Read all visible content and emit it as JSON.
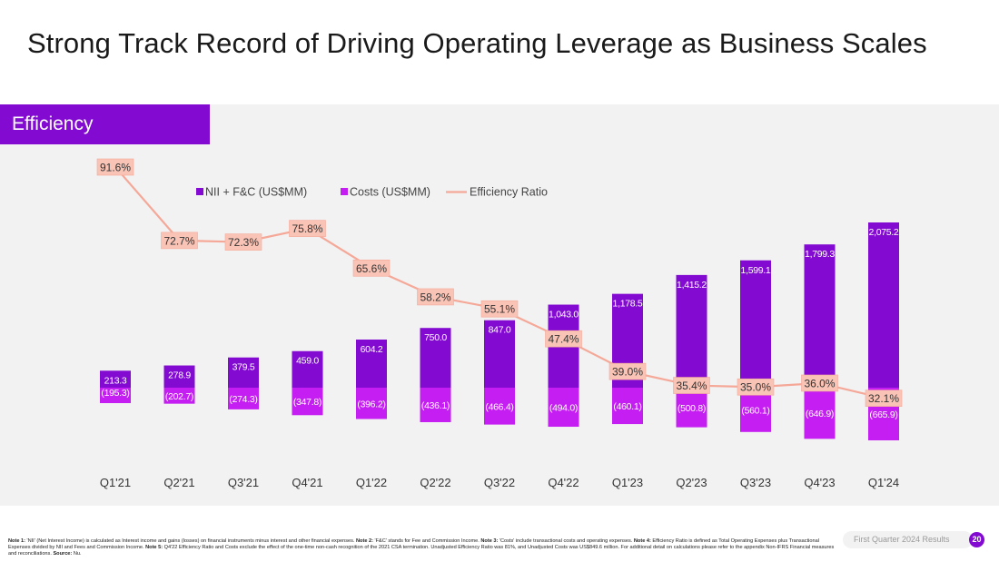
{
  "page": {
    "title": "Strong Track Record of Driving Operating Leverage as Business Scales",
    "section_tab": "Efficiency",
    "footer_label": "First Quarter 2024 Results",
    "page_number": "20"
  },
  "footnote": [
    {
      "b": "Note 1: ",
      "t": "'NII' (Net Interest Income) is calculated as Interest income and gains (losses) on financial instruments minus interest and other financial expenses. "
    },
    {
      "b": "Note 2: ",
      "t": "'F&C' stands for Fee and Commission Income. "
    },
    {
      "b": "Note 3: ",
      "t": "'Costs' include transactional costs and operating expenses. "
    },
    {
      "b": "Note 4: ",
      "t": "Efficiency Ratio is defined as Total Operating Expenses plus Transactional Expenses divided by NII and Fees and Commission Income. "
    },
    {
      "b": "Note 5: ",
      "t": "Q4'22 Efficiency Ratio and Costs exclude the effect of the one-time non-cash recognition of the 2021 CSA termination. Unadjusted Efficiency Ratio was 81%, and Unadjusted Costs was US$849.6 million. For additional detail on calculations please refer to the appendix Non-IFRS Financial measures and reconciliations. "
    },
    {
      "b": "Source: ",
      "t": "Nu."
    }
  ],
  "colors": {
    "brand": "#820ad1",
    "revenue_bar": "#820ad1",
    "cost_bar": "#c51ef2",
    "ratio_line": "#f5a898",
    "ratio_label_bg": "#f9c3b5"
  },
  "chart_data": {
    "type": "bar",
    "categories": [
      "Q1'21",
      "Q2'21",
      "Q3'21",
      "Q4'21",
      "Q1'22",
      "Q2'22",
      "Q3'22",
      "Q4'22",
      "Q1'23",
      "Q2'23",
      "Q3'23",
      "Q4'23",
      "Q1'24"
    ],
    "series": [
      {
        "name": "NII + F&C (US$MM)",
        "kind": "bar",
        "values": [
          213.3,
          278.9,
          379.5,
          459.0,
          604.2,
          750.0,
          847.0,
          1043.0,
          1178.5,
          1415.2,
          1599.1,
          1799.3,
          2075.2
        ],
        "labels": [
          "213.3",
          "278.9",
          "379.5",
          "459.0",
          "604.2",
          "750.0",
          "847.0",
          "1,043.0",
          "1,178.5",
          "1,415.2",
          "1,599.1",
          "1,799.3",
          "2,075.2"
        ]
      },
      {
        "name": "Costs (US$MM)",
        "kind": "bar",
        "values": [
          -195.3,
          -202.7,
          -274.3,
          -347.8,
          -396.2,
          -436.1,
          -466.4,
          -494.0,
          -460.1,
          -500.8,
          -560.1,
          -646.9,
          -665.9
        ],
        "labels": [
          "(195.3)",
          "(202.7)",
          "(274.3)",
          "(347.8)",
          "(396.2)",
          "(436.1)",
          "(466.4)",
          "(494.0)",
          "(460.1)",
          "(500.8)",
          "(560.1)",
          "(646.9)",
          "(665.9)"
        ]
      },
      {
        "name": "Efficiency Ratio",
        "kind": "line",
        "values": [
          91.6,
          72.7,
          72.3,
          75.8,
          65.6,
          58.2,
          55.1,
          47.4,
          39.0,
          35.4,
          35.0,
          36.0,
          32.1
        ],
        "labels": [
          "91.6%",
          "72.7%",
          "72.3%",
          "75.8%",
          "65.6%",
          "58.2%",
          "55.1%",
          "47.4%",
          "39.0%",
          "35.4%",
          "35.0%",
          "36.0%",
          "32.1%"
        ]
      }
    ],
    "legend": "top-center",
    "grid": false
  }
}
